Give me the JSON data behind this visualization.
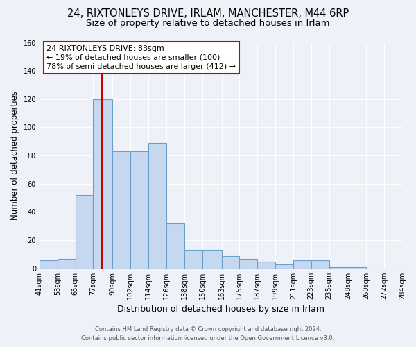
{
  "title_line1": "24, RIXTONLEYS DRIVE, IRLAM, MANCHESTER, M44 6RP",
  "title_line2": "Size of property relative to detached houses in Irlam",
  "bin_edges": [
    41,
    53,
    65,
    77,
    90,
    102,
    114,
    126,
    138,
    150,
    163,
    175,
    187,
    199,
    211,
    223,
    235,
    248,
    260,
    272,
    284
  ],
  "bar_heights": [
    6,
    7,
    52,
    120,
    83,
    83,
    89,
    32,
    13,
    13,
    9,
    7,
    5,
    3,
    6,
    6,
    1,
    1,
    0,
    0
  ],
  "bar_color": "#c5d8f0",
  "bar_edgecolor": "#6aa0cb",
  "bar_linewidth": 0.8,
  "vline_x": 83,
  "vline_color": "#cc0000",
  "vline_linewidth": 1.5,
  "ylabel": "Number of detached properties",
  "xlabel": "Distribution of detached houses by size in Irlam",
  "ylim": [
    0,
    160
  ],
  "yticks": [
    0,
    20,
    40,
    60,
    80,
    100,
    120,
    140,
    160
  ],
  "annotation_title": "24 RIXTONLEYS DRIVE: 83sqm",
  "annotation_line2": "← 19% of detached houses are smaller (100)",
  "annotation_line3": "78% of semi-detached houses are larger (412) →",
  "annotation_box_edgecolor": "#cc0000",
  "annotation_box_facecolor": "#ffffff",
  "footer_line1": "Contains HM Land Registry data © Crown copyright and database right 2024.",
  "footer_line2": "Contains public sector information licensed under the Open Government Licence v3.0.",
  "background_color": "#eef2f8",
  "grid_color": "#ffffff",
  "title_fontsize": 10.5,
  "subtitle_fontsize": 9.5,
  "ylabel_fontsize": 8.5,
  "xlabel_fontsize": 9,
  "tick_fontsize": 7,
  "annot_fontsize": 8,
  "footer_fontsize": 6
}
